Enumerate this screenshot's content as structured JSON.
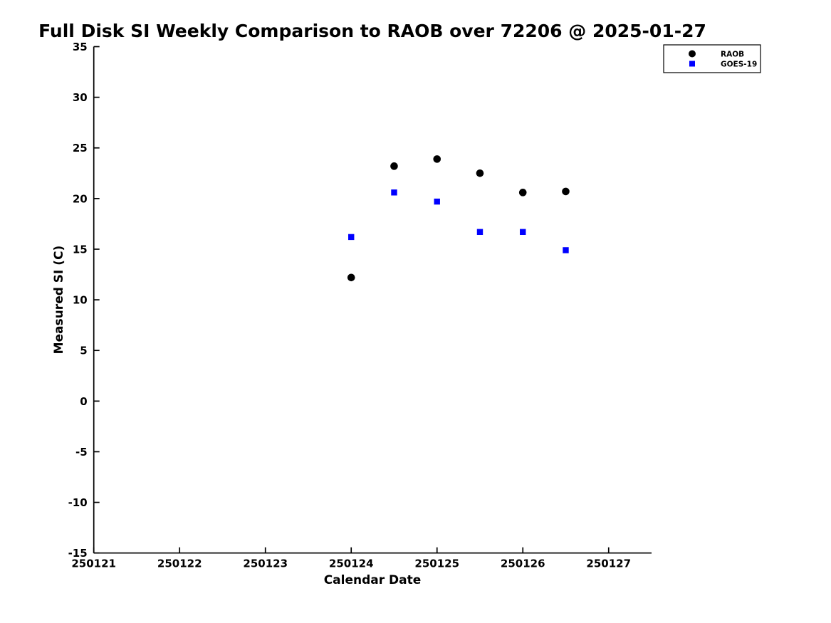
{
  "figure": {
    "background": "#ffffff",
    "text_color": "#000000"
  },
  "chart_data": {
    "type": "scatter",
    "title": "Full Disk SI Weekly Comparison to RAOB over 72206 @ 2025-01-27",
    "xlabel": "Calendar Date",
    "ylabel": "Measured SI (C)",
    "xlim": [
      250121,
      250127.5
    ],
    "ylim": [
      -15,
      35
    ],
    "xticks": [
      250121,
      250122,
      250123,
      250124,
      250125,
      250126,
      250127
    ],
    "yticks": [
      -15,
      -10,
      -5,
      0,
      5,
      10,
      15,
      20,
      25,
      30,
      35
    ],
    "grid": false,
    "legend_position": "top-right-outside",
    "series": [
      {
        "name": "RAOB",
        "marker": "circle",
        "color": "#000000",
        "x": [
          250124.0,
          250124.5,
          250125.0,
          250125.5,
          250126.0,
          250126.5
        ],
        "y": [
          12.2,
          23.2,
          23.9,
          22.5,
          20.6,
          20.7
        ]
      },
      {
        "name": "GOES-19",
        "marker": "square",
        "color": "#0000ff",
        "x": [
          250124.0,
          250124.5,
          250125.0,
          250125.5,
          250126.0,
          250126.5
        ],
        "y": [
          16.2,
          20.6,
          19.7,
          16.7,
          16.7,
          14.9
        ]
      }
    ]
  }
}
